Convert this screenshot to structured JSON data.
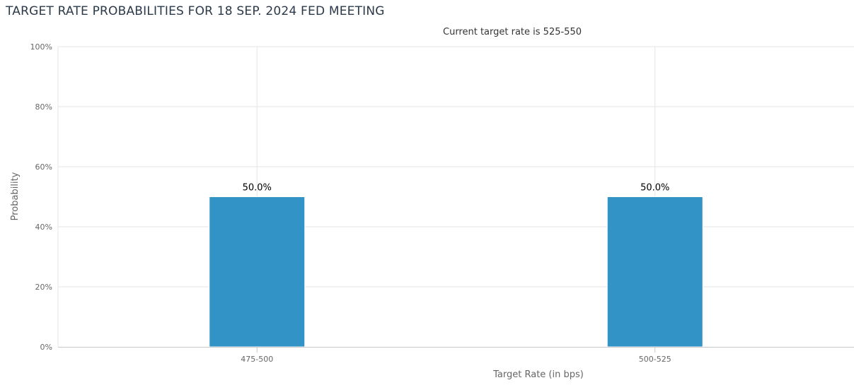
{
  "title": "TARGET RATE PROBABILITIES FOR 18 SEP. 2024 FED MEETING",
  "colors": {
    "bar": "#3193c6",
    "grid": "#e6e6e6",
    "axis": "#c8c8c8"
  },
  "chart_data": {
    "type": "bar",
    "title": "TARGET RATE PROBABILITIES FOR 18 SEP. 2024 FED MEETING",
    "subtitle": "Current target rate is 525-550",
    "xlabel": "Target Rate (in bps)",
    "ylabel": "Probability",
    "categories": [
      "475-500",
      "500-525"
    ],
    "values": [
      50.0,
      50.0
    ],
    "data_labels": [
      "50.0%",
      "50.0%"
    ],
    "ylim": [
      0,
      100
    ],
    "y_ticks": [
      0,
      20,
      40,
      60,
      80,
      100
    ],
    "y_tick_labels": [
      "0%",
      "20%",
      "40%",
      "60%",
      "80%",
      "100%"
    ],
    "grid": true,
    "legend": "none"
  }
}
